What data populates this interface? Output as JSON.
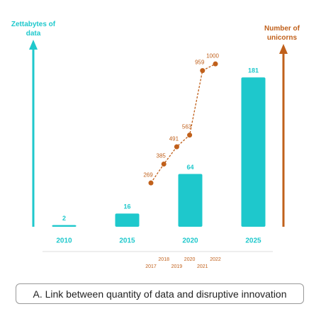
{
  "caption": "A. Link between quantity of data and disruptive innovation",
  "chart_data": [
    {
      "type": "bar",
      "y_label": "Zettabytes of data",
      "categories": [
        "2010",
        "2015",
        "2020",
        "2025"
      ],
      "values": [
        2,
        16,
        64,
        181
      ],
      "color": "#1ec8cc",
      "ylim": [
        0,
        225
      ]
    },
    {
      "type": "line",
      "y_label": "Number of unicorns",
      "x": [
        2017,
        2018,
        2019,
        2020,
        2021,
        2022
      ],
      "values": [
        269,
        385,
        491,
        563,
        959,
        1000
      ],
      "color": "#c0601b",
      "xlim": [
        2017,
        2022
      ],
      "ylim": [
        0,
        1140
      ]
    }
  ]
}
